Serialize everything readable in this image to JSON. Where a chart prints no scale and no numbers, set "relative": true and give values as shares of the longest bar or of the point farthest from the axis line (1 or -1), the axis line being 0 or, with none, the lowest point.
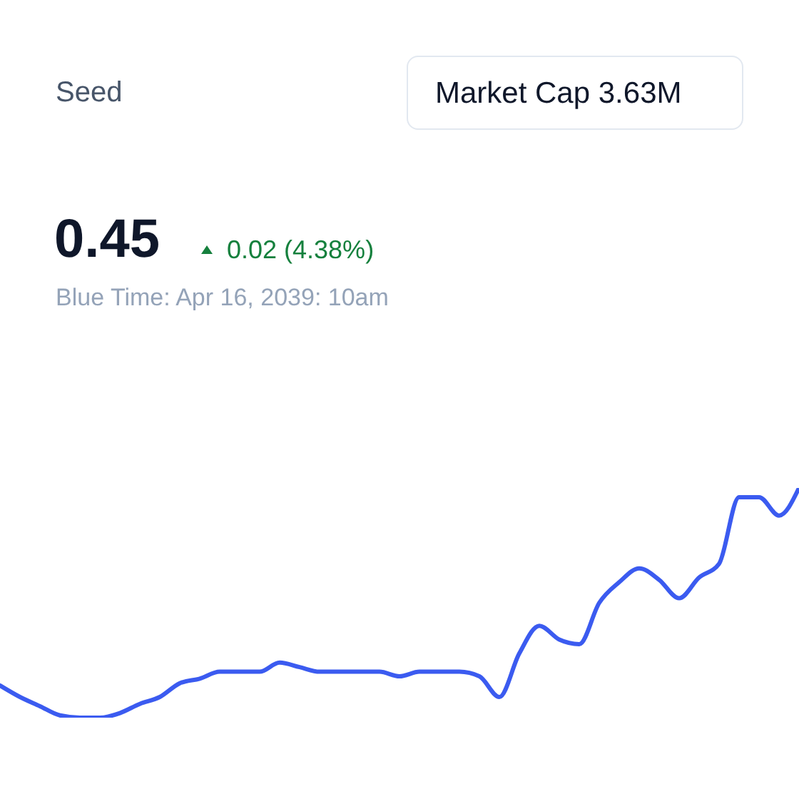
{
  "chart_data": {
    "type": "line",
    "relative": true,
    "subtitle": "Seed",
    "annotations": [
      "0.45",
      "0.02 (4.38%)",
      "Blue Time: Apr 16, 2039: 10am",
      "Market Cap 3.63M"
    ],
    "categories": [
      null,
      null,
      null,
      null,
      null,
      null,
      null,
      null,
      null,
      null,
      null,
      null,
      null,
      null,
      null,
      null,
      null,
      null,
      null,
      null,
      null,
      null,
      null,
      null,
      null,
      null,
      null,
      null,
      null,
      null,
      null,
      null,
      null,
      null,
      null,
      null,
      null,
      null,
      null,
      null,
      null
    ],
    "series": [
      {
        "color": "#3b5bf0",
        "values": [
          0.14,
          0.09,
          0.05,
          0.01,
          0,
          0,
          0.02,
          0.06,
          0.09,
          0.15,
          0.17,
          0.2,
          0.2,
          0.2,
          0.24,
          0.22,
          0.2,
          0.2,
          0.2,
          0.2,
          0.18,
          0.2,
          0.2,
          0.2,
          0.18,
          0.09,
          0.28,
          0.4,
          0.34,
          0.32,
          0.5,
          0.59,
          0.65,
          0.6,
          0.52,
          0.61,
          0.67,
          0.96,
          0.96,
          0.88,
          1.0
        ]
      }
    ]
  }
}
